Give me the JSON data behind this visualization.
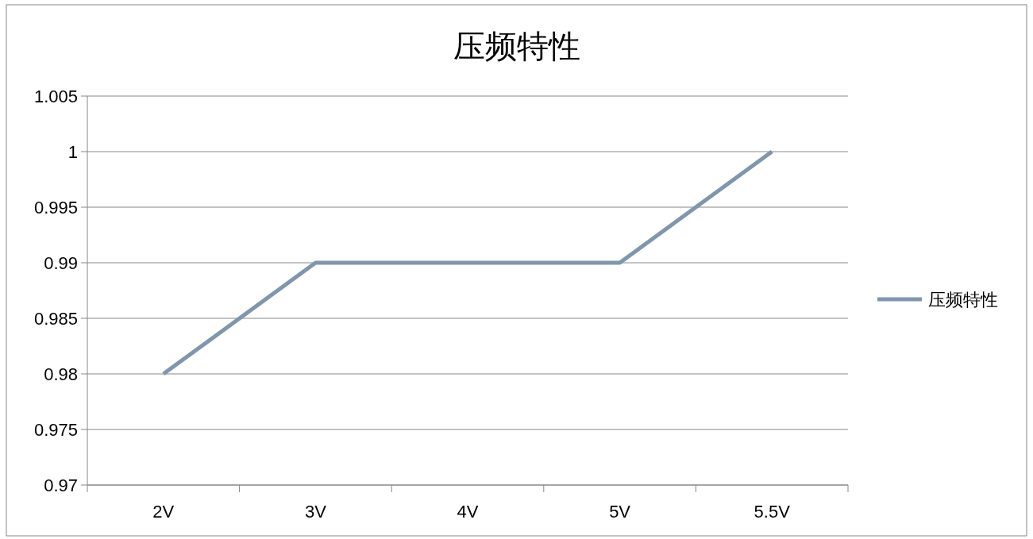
{
  "chart_data": {
    "type": "line",
    "title": "压频特性",
    "categories": [
      "2V",
      "3V",
      "4V",
      "5V",
      "5.5V"
    ],
    "series": [
      {
        "name": "压频特性",
        "color": "#7f96ad",
        "values": [
          0.98,
          0.99,
          0.99,
          0.99,
          1
        ]
      }
    ],
    "ylim": [
      0.97,
      1.005
    ],
    "yticks": [
      0.97,
      0.975,
      0.98,
      0.985,
      0.99,
      0.995,
      1,
      1.005
    ],
    "grid": "y",
    "legend": "right",
    "marker": "none",
    "line_style": "solid"
  }
}
